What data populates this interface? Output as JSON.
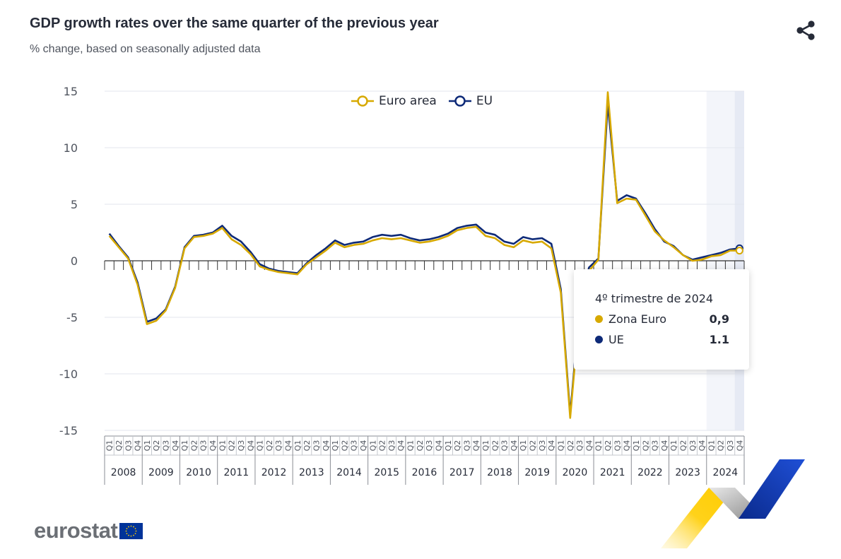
{
  "header": {
    "title": "GDP growth rates over the same quarter of the previous year",
    "subtitle": "% change, based on seasonally adjusted data"
  },
  "legend": {
    "items": [
      {
        "label": "Euro area",
        "color": "#d7a900"
      },
      {
        "label": "EU",
        "color": "#0e2a78"
      }
    ]
  },
  "tooltip": {
    "header": "4º trimestre de 2024",
    "rows": [
      {
        "name": "Zona Euro",
        "value": "0,9",
        "color": "#d7a900"
      },
      {
        "name": "UE",
        "value": "1.1",
        "color": "#0e2a78"
      }
    ]
  },
  "branding": {
    "logo_text": "eurostat",
    "share_icon": "share-icon",
    "flag_icon": "eu-flag-icon"
  },
  "chart_data": {
    "type": "line",
    "title": "GDP growth rates over the same quarter of the previous year",
    "subtitle": "% change, based on seasonally adjusted data",
    "xlabel": "",
    "ylabel": "",
    "ylim": [
      -15,
      15
    ],
    "yticks": [
      15,
      10,
      5,
      0,
      -5,
      -10,
      -15
    ],
    "grid": true,
    "legend_position": "top-center",
    "highlighted_period": "2024",
    "quarter_labels": [
      "Q1",
      "Q2",
      "Q3",
      "Q4"
    ],
    "years": [
      "2008",
      "2009",
      "2010",
      "2011",
      "2012",
      "2013",
      "2014",
      "2015",
      "2016",
      "2017",
      "2018",
      "2019",
      "2020",
      "2021",
      "2022",
      "2023",
      "2024"
    ],
    "series": [
      {
        "name": "Euro area",
        "color": "#d7a900",
        "values": [
          2.2,
          1.2,
          0.2,
          -2.1,
          -5.6,
          -5.3,
          -4.4,
          -2.4,
          1.1,
          2.1,
          2.2,
          2.4,
          2.9,
          1.9,
          1.4,
          0.6,
          -0.5,
          -0.8,
          -1.0,
          -1.1,
          -1.2,
          -0.3,
          0.3,
          0.9,
          1.6,
          1.2,
          1.4,
          1.5,
          1.8,
          2.0,
          1.9,
          2.0,
          1.8,
          1.6,
          1.7,
          1.9,
          2.2,
          2.7,
          2.9,
          3.0,
          2.2,
          2.0,
          1.4,
          1.2,
          1.8,
          1.6,
          1.7,
          1.1,
          -2.8,
          -13.9,
          -4.4,
          -0.9,
          0.1,
          14.9,
          5.1,
          5.5,
          5.4,
          4.0,
          2.6,
          1.8,
          1.2,
          0.5,
          0.0,
          0.1,
          0.4,
          0.5,
          0.9,
          0.9
        ]
      },
      {
        "name": "EU",
        "color": "#0e2a78",
        "values": [
          2.4,
          1.3,
          0.3,
          -1.9,
          -5.4,
          -5.1,
          -4.3,
          -2.3,
          1.2,
          2.2,
          2.3,
          2.5,
          3.1,
          2.2,
          1.7,
          0.8,
          -0.3,
          -0.7,
          -0.9,
          -1.0,
          -1.1,
          -0.2,
          0.5,
          1.1,
          1.8,
          1.4,
          1.6,
          1.7,
          2.1,
          2.3,
          2.2,
          2.3,
          2.0,
          1.8,
          1.9,
          2.1,
          2.4,
          2.9,
          3.1,
          3.2,
          2.5,
          2.3,
          1.7,
          1.5,
          2.1,
          1.9,
          2.0,
          1.5,
          -2.5,
          -13.6,
          -4.1,
          -0.6,
          0.2,
          13.9,
          5.3,
          5.8,
          5.5,
          4.2,
          2.8,
          1.7,
          1.3,
          0.5,
          0.1,
          0.3,
          0.5,
          0.7,
          1.0,
          1.1
        ]
      }
    ]
  }
}
